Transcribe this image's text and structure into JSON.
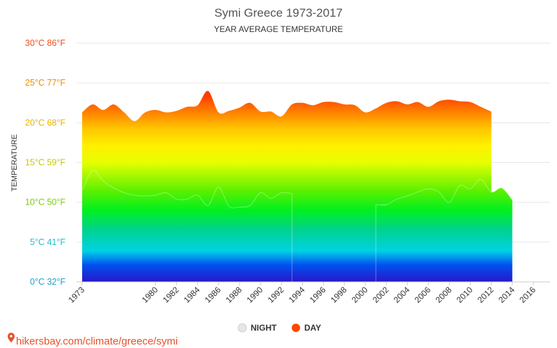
{
  "chart_data": {
    "type": "area",
    "title": "Symi Greece 1973-2017",
    "subtitle": "YEAR AVERAGE TEMPERATURE",
    "ylabel": "TEMPERATURE",
    "xlabel": "",
    "ylim": [
      0,
      30
    ],
    "xlim": [
      1973,
      2017
    ],
    "grid": true,
    "legend_placement": "bottom-center",
    "y_ticks": [
      {
        "value": 0,
        "label": "0°C 32°F",
        "color": "#1ea0c8"
      },
      {
        "value": 5,
        "label": "5°C 41°F",
        "color": "#20bcc8"
      },
      {
        "value": 10,
        "label": "10°C 50°F",
        "color": "#7acc10"
      },
      {
        "value": 15,
        "label": "15°C 59°F",
        "color": "#c8c800"
      },
      {
        "value": 20,
        "label": "20°C 68°F",
        "color": "#e6b400"
      },
      {
        "value": 25,
        "label": "25°C 77°F",
        "color": "#f08c00"
      },
      {
        "value": 30,
        "label": "30°C 86°F",
        "color": "#f0501e"
      }
    ],
    "x_ticks": [
      1973,
      1980,
      1982,
      1984,
      1986,
      1988,
      1990,
      1992,
      1994,
      1996,
      1998,
      2000,
      2002,
      2004,
      2006,
      2008,
      2010,
      2012,
      2014,
      2016
    ],
    "series": [
      {
        "name": "DAY",
        "color": "#ff4500",
        "x": [
          1973,
          1974,
          1975,
          1976,
          1977,
          1978,
          1979,
          1980,
          1981,
          1982,
          1983,
          1984,
          1985,
          1986,
          1987,
          1988,
          1989,
          1990,
          1991,
          1992,
          1993,
          1994,
          1995,
          1996,
          1997,
          1998,
          1999,
          2000,
          2001,
          2002,
          2003,
          2004,
          2005,
          2006,
          2007,
          2008,
          2009,
          2010,
          2011,
          2012,
          2013,
          2014,
          2015,
          2016,
          2017
        ],
        "values": [
          21.3,
          22.3,
          21.6,
          22.3,
          21.3,
          20.2,
          21.3,
          21.6,
          21.3,
          21.5,
          22.0,
          22.2,
          24.0,
          21.3,
          21.5,
          21.9,
          22.5,
          21.4,
          21.4,
          20.8,
          22.3,
          22.5,
          22.2,
          22.6,
          22.6,
          22.3,
          22.2,
          21.3,
          21.8,
          22.5,
          22.7,
          22.3,
          22.6,
          22.0,
          22.7,
          22.9,
          22.7,
          22.6,
          22.0,
          21.4,
          null,
          null,
          null,
          null,
          null
        ]
      },
      {
        "name": "NIGHT",
        "color": "#dddddd",
        "x": [
          1973,
          1974,
          1975,
          1976,
          1977,
          1978,
          1979,
          1980,
          1981,
          1982,
          1983,
          1984,
          1985,
          1986,
          1987,
          1988,
          1989,
          1990,
          1991,
          1992,
          1993,
          1994,
          1995,
          1996,
          1997,
          1998,
          1999,
          2000,
          2001,
          2002,
          2003,
          2004,
          2005,
          2006,
          2007,
          2008,
          2009,
          2010,
          2011,
          2012,
          2013,
          2014,
          2015,
          2016,
          2017
        ],
        "values": [
          11.5,
          14.0,
          12.7,
          11.8,
          11.2,
          10.9,
          10.8,
          10.9,
          11.2,
          10.4,
          10.4,
          10.9,
          9.6,
          11.9,
          9.5,
          9.4,
          9.6,
          11.2,
          10.5,
          11.2,
          11.1,
          0,
          0,
          0,
          0,
          0,
          0,
          0,
          0,
          9.7,
          10.4,
          10.8,
          11.3,
          11.7,
          11.3,
          10.0,
          12.1,
          11.7,
          12.9,
          11.3,
          11.8,
          10.3,
          null,
          null,
          null
        ]
      }
    ]
  },
  "legend": {
    "night_label": "NIGHT",
    "day_label": "DAY"
  },
  "footer": {
    "text": "hikersbay.com/climate/greece/symi",
    "pin_icon": "location-pin-icon"
  }
}
